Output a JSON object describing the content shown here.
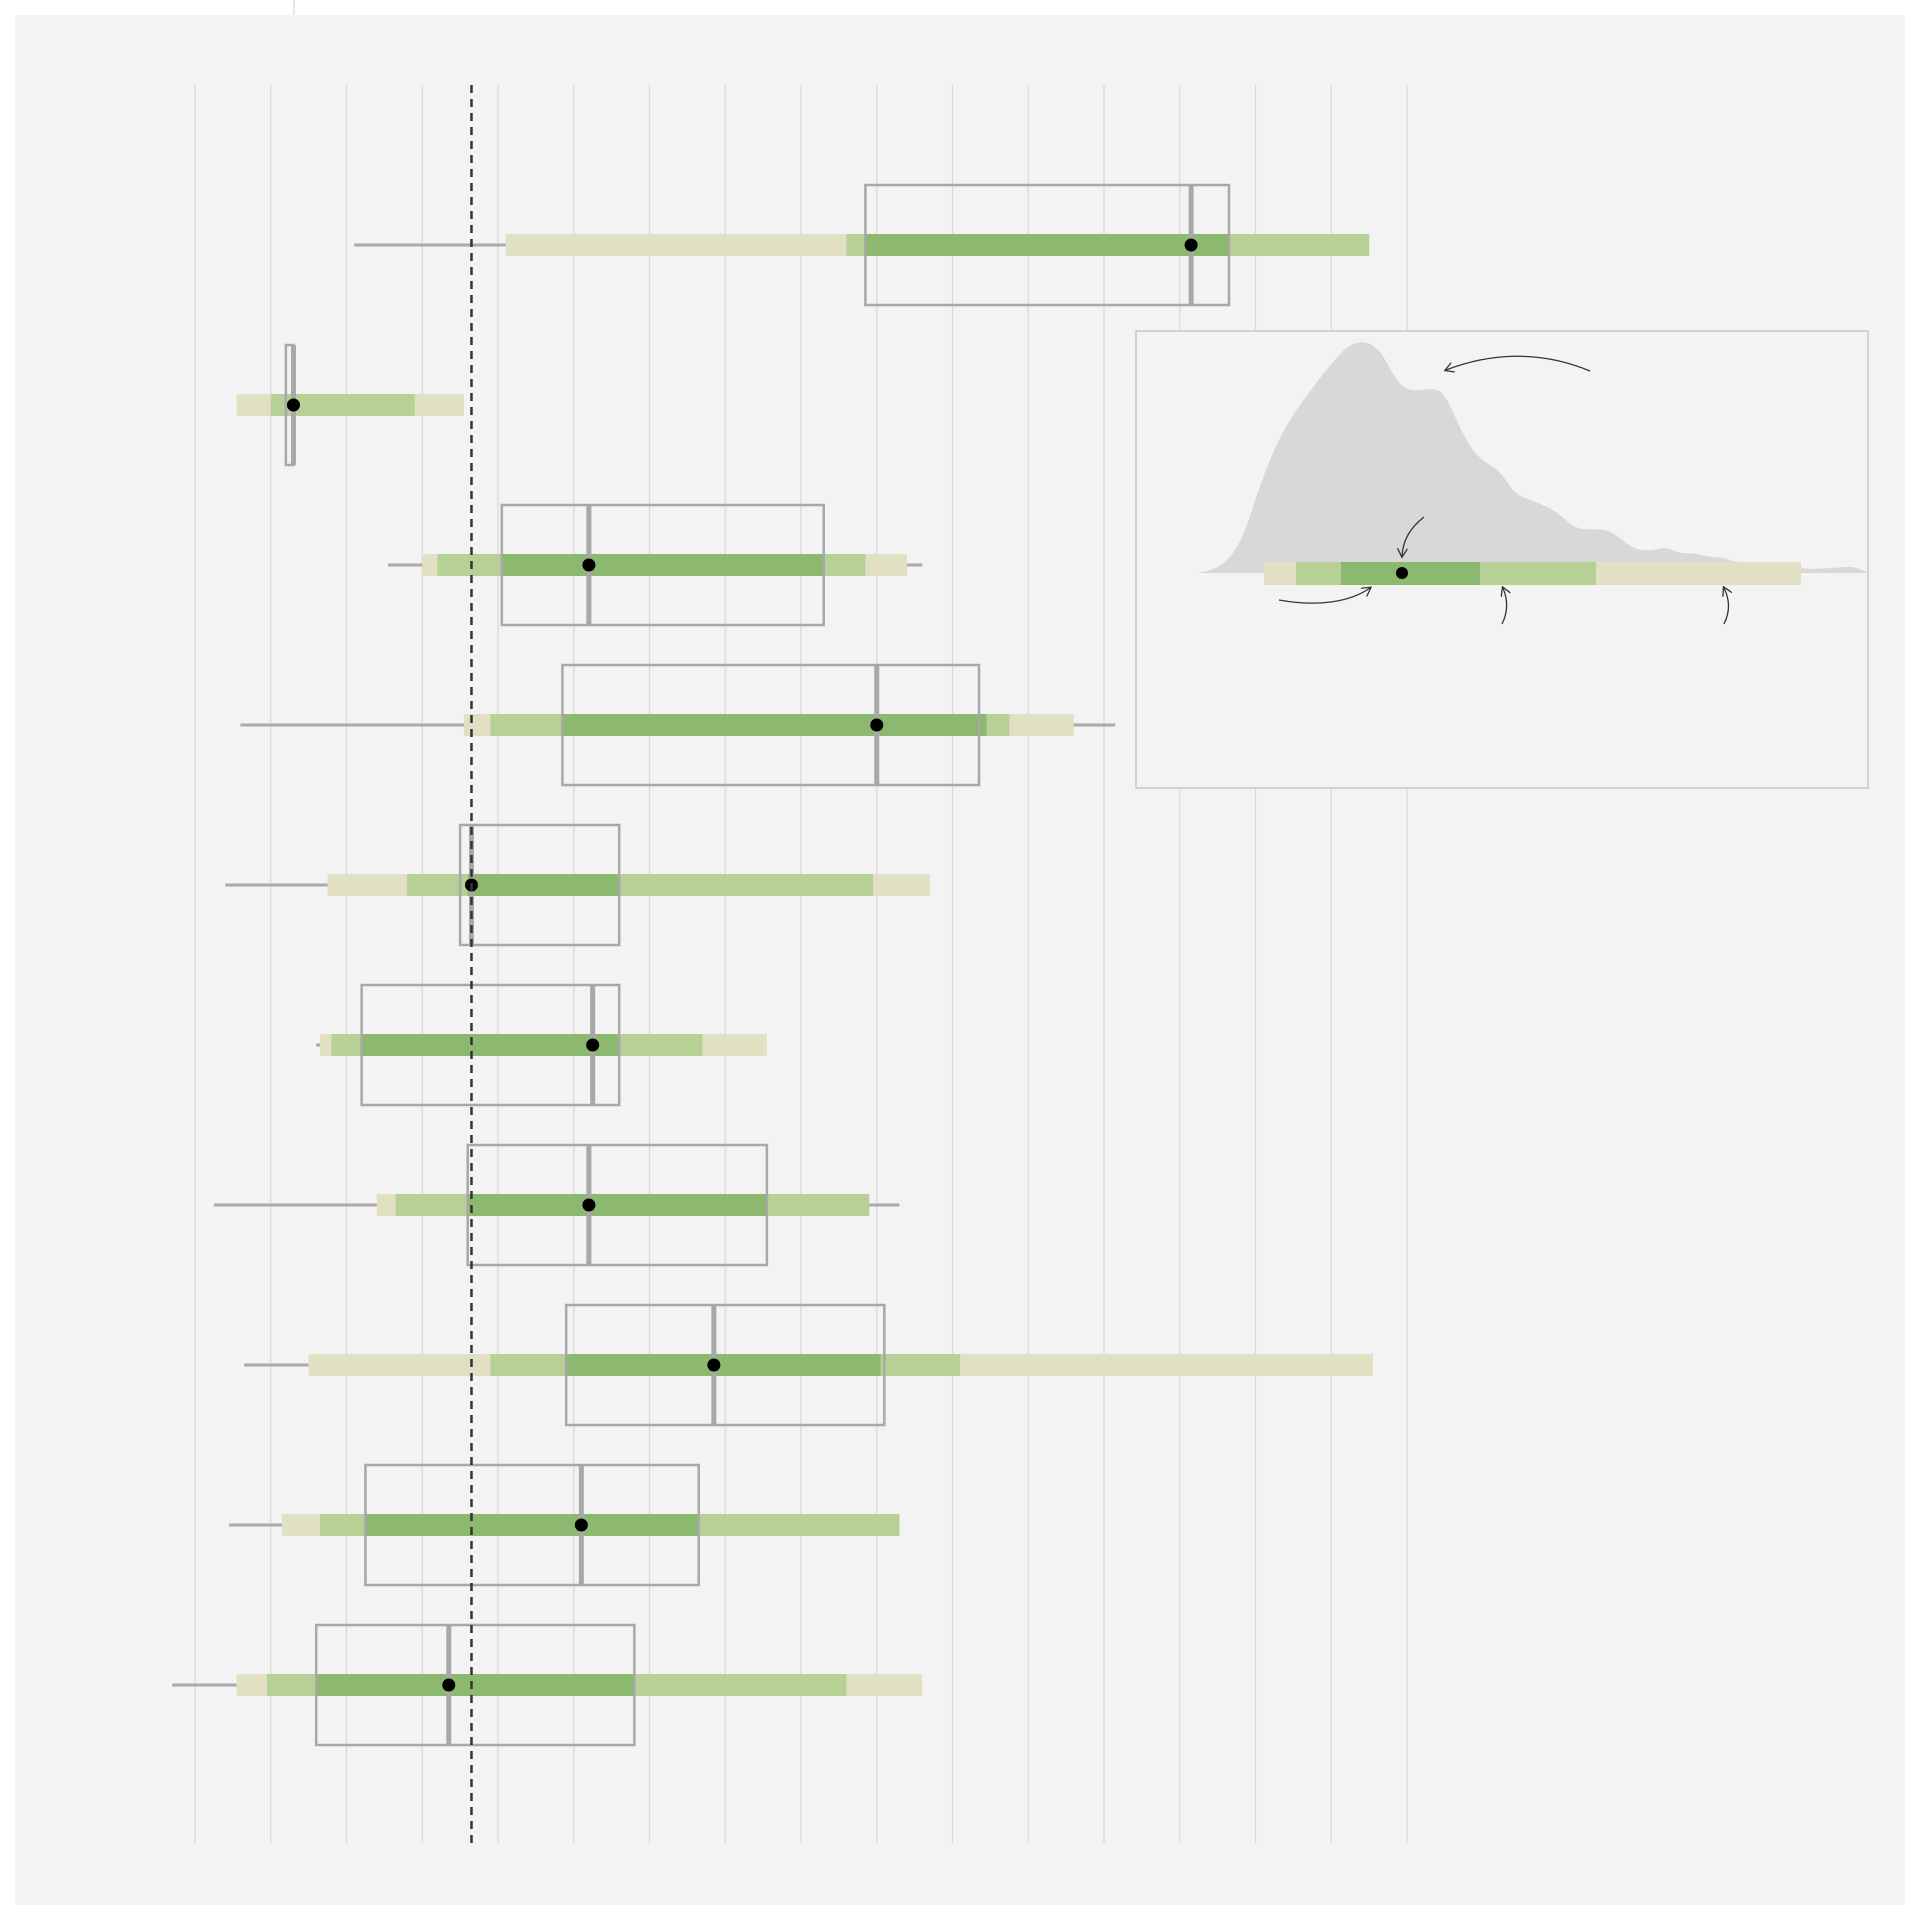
{
  "chart_data": {
    "type": "interval-box",
    "reference_line_value": 3.65,
    "xlim": [
      0,
      18
    ],
    "grid_ticks": [
      0,
      1,
      2,
      3,
      4,
      5,
      6,
      7,
      8,
      9,
      10,
      11,
      12,
      13,
      14,
      15,
      16
    ],
    "colors": {
      "background": "#f3f3f3",
      "band_outer": "#e1e0c3",
      "band_mid": "#b7d096",
      "band_inner": "#8db870",
      "box": "#a8a8a8",
      "whisker": "#aaaaaa",
      "grid": "#d8d8d8",
      "point": "#000000",
      "reference_line": "#333333",
      "density": "#d8d8d8"
    },
    "rows": [
      {
        "whisker": [
          2.1,
          4.1
        ],
        "outer": [
          4.1,
          15.5
        ],
        "mid": [
          8.6,
          15.5
        ],
        "inner": [
          8.85,
          13.65
        ],
        "box": [
          8.85,
          13.65
        ],
        "median": 13.15,
        "point": 13.15
      },
      {
        "whisker": [
          0.55,
          0.55
        ],
        "outer": [
          0.55,
          3.55
        ],
        "mid": [
          1.0,
          2.9
        ],
        "inner": [
          1.0,
          1.0
        ],
        "box": [
          1.2,
          1.3
        ],
        "median": 1.3,
        "point": 1.3
      },
      {
        "whisker": [
          2.55,
          9.6
        ],
        "outer": [
          3.0,
          9.4
        ],
        "mid": [
          3.2,
          8.85
        ],
        "inner": [
          4.05,
          8.3
        ],
        "box": [
          4.05,
          8.3
        ],
        "median": 5.2,
        "point": 5.2
      },
      {
        "whisker": [
          0.6,
          12.15
        ],
        "outer": [
          3.55,
          11.6
        ],
        "mid": [
          3.9,
          10.75
        ],
        "inner": [
          4.85,
          10.45
        ],
        "box": [
          4.85,
          10.35
        ],
        "median": 9.0,
        "point": 9.0
      },
      {
        "whisker": [
          0.4,
          3.6
        ],
        "outer": [
          1.75,
          9.7
        ],
        "mid": [
          2.8,
          8.95
        ],
        "inner": [
          3.6,
          5.6
        ],
        "box": [
          3.5,
          5.6
        ],
        "median": 3.65,
        "point": 3.65
      },
      {
        "whisker": [
          1.6,
          1.65
        ],
        "outer": [
          1.65,
          7.55
        ],
        "mid": [
          1.8,
          6.7
        ],
        "inner": [
          2.2,
          5.6
        ],
        "box": [
          2.2,
          5.6
        ],
        "median": 5.25,
        "point": 5.25
      },
      {
        "whisker": [
          0.25,
          9.3
        ],
        "outer": [
          2.4,
          8.9
        ],
        "mid": [
          2.65,
          8.9
        ],
        "inner": [
          3.6,
          7.55
        ],
        "box": [
          3.6,
          7.55
        ],
        "median": 5.2,
        "point": 5.2
      },
      {
        "whisker": [
          0.65,
          1.5
        ],
        "outer": [
          1.5,
          15.55
        ],
        "mid": [
          3.9,
          10.1
        ],
        "inner": [
          4.9,
          9.05
        ],
        "box": [
          4.9,
          9.1
        ],
        "median": 6.85,
        "point": 6.85
      },
      {
        "whisker": [
          0.45,
          1.15
        ],
        "outer": [
          1.15,
          9.3
        ],
        "mid": [
          1.65,
          9.3
        ],
        "inner": [
          2.25,
          6.65
        ],
        "box": [
          2.25,
          6.65
        ],
        "median": 5.1,
        "point": 5.1
      },
      {
        "whisker": [
          -0.3,
          0.55
        ],
        "outer": [
          0.55,
          9.6
        ],
        "mid": [
          0.95,
          8.6
        ],
        "inner": [
          1.6,
          5.8
        ],
        "box": [
          1.6,
          5.8
        ],
        "median": 3.35,
        "point": 3.35
      }
    ]
  },
  "legend_inset": {
    "density_color": "#d8d8d8"
  }
}
